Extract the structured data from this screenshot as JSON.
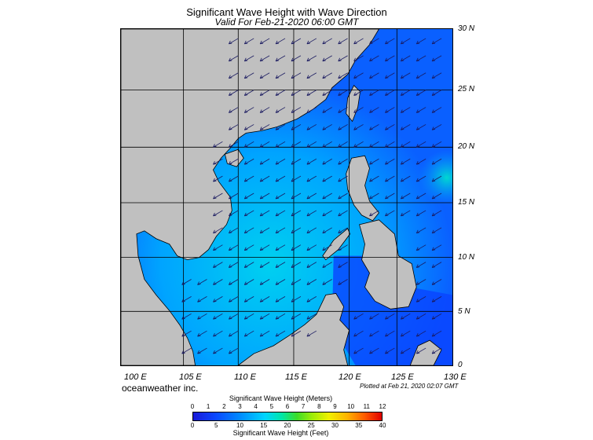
{
  "header": {
    "title": "Significant Wave Height with Wave Direction",
    "subtitle": "Valid For Feb-21-2020 06:00 GMT"
  },
  "map": {
    "lat_labels": [
      "30 N",
      "25 N",
      "20 N",
      "15 N",
      "10 N",
      "5 N",
      "0"
    ],
    "lon_labels": [
      "100 E",
      "105 E",
      "110 E",
      "115 E",
      "120 E",
      "125 E",
      "130 E"
    ],
    "colors": {
      "land": "#c0c0c0",
      "sea_low": "#0a48ff",
      "sea_mid": "#00a6ff",
      "sea_high": "#00d8e8",
      "grid": "#000000"
    }
  },
  "footer": {
    "brand": "oceanweather inc.",
    "plotted": "Plotted at Feb 21, 2020 02:07 GMT"
  },
  "colorbar": {
    "title_meters": "Significant Wave Height (Meters)",
    "title_feet": "Significant Wave Height (Feet)",
    "meters_ticks": [
      "0",
      "1",
      "2",
      "3",
      "4",
      "5",
      "6",
      "7",
      "8",
      "9",
      "10",
      "11",
      "12"
    ],
    "feet_ticks": [
      "0",
      "5",
      "10",
      "15",
      "20",
      "25",
      "30",
      "35",
      "40"
    ]
  }
}
